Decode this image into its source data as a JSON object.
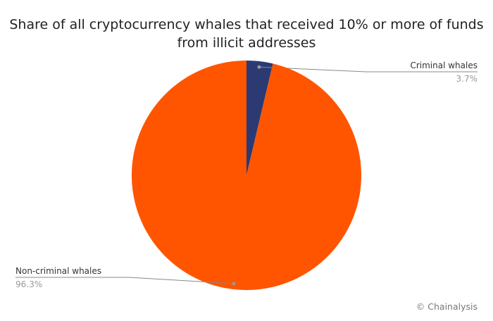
{
  "chart_data": {
    "type": "pie",
    "title": "Share of all cryptocurrency whales that received 10% or more of funds from illicit addresses",
    "slices": [
      {
        "label": "Criminal whales",
        "value": 3.7,
        "value_label": "3.7%",
        "color": "#2b3a73"
      },
      {
        "label": "Non-criminal whales",
        "value": 96.3,
        "value_label": "96.3%",
        "color": "#ff5500"
      }
    ],
    "start_angle": "top",
    "direction": "clockwise"
  },
  "credit": "© Chainalysis"
}
